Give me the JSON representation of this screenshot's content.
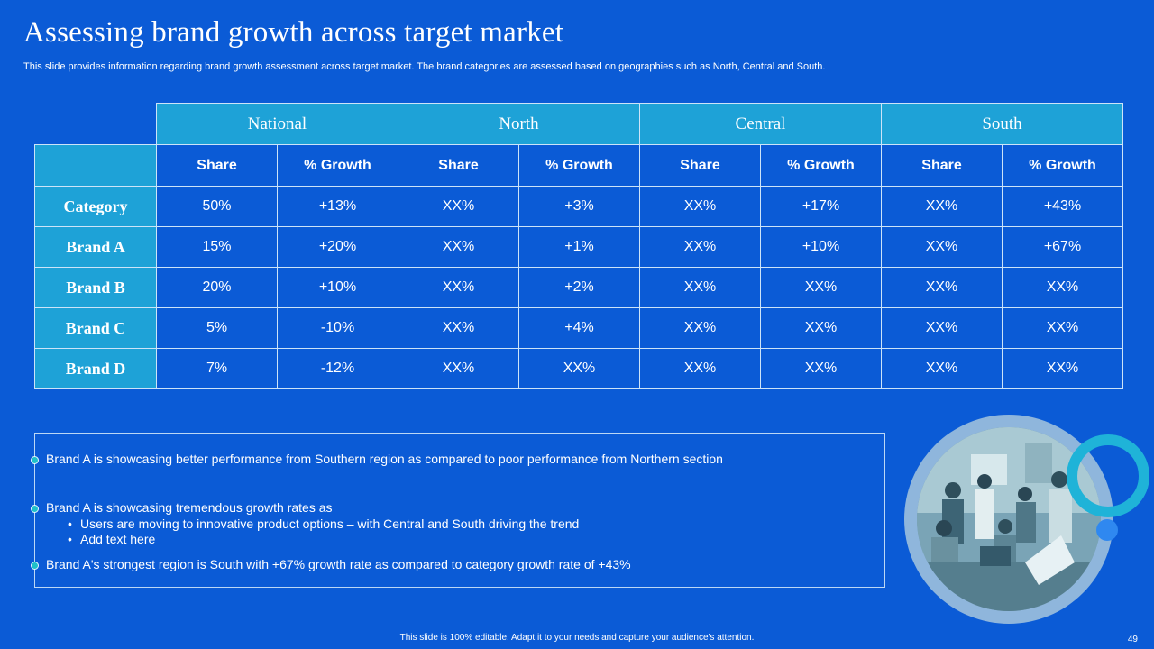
{
  "title": "Assessing brand growth across target market",
  "subtitle": "This slide provides information regarding brand growth assessment across target market. The brand categories are assessed based on geographies such as North, Central and South.",
  "table": {
    "regions": [
      "National",
      "North",
      "Central",
      "South"
    ],
    "subheaders": [
      "Share",
      "% Growth",
      "Share",
      "% Growth",
      "Share",
      "% Growth",
      "Share",
      "% Growth"
    ],
    "rows": [
      {
        "label": "Category",
        "cells": [
          "50%",
          "+13%",
          "XX%",
          "+3%",
          "XX%",
          "+17%",
          "XX%",
          "+43%"
        ]
      },
      {
        "label": "Brand A",
        "cells": [
          "15%",
          "+20%",
          "XX%",
          "+1%",
          "XX%",
          "+10%",
          "XX%",
          "+67%"
        ]
      },
      {
        "label": "Brand B",
        "cells": [
          "20%",
          "+10%",
          "XX%",
          "+2%",
          "XX%",
          "XX%",
          "XX%",
          "XX%"
        ]
      },
      {
        "label": "Brand C",
        "cells": [
          "5%",
          "-10%",
          "XX%",
          "+4%",
          "XX%",
          "XX%",
          "XX%",
          "XX%"
        ]
      },
      {
        "label": "Brand D",
        "cells": [
          "7%",
          "-12%",
          "XX%",
          "XX%",
          "XX%",
          "XX%",
          "XX%",
          "XX%"
        ]
      }
    ]
  },
  "insights": {
    "point1": "Brand A is showcasing better performance from Southern region as compared to poor performance from Northern section",
    "point2": "Brand A is showcasing tremendous growth rates as",
    "point2_sub": [
      "Users are moving to innovative product options – with Central and South driving the trend",
      "Add text here"
    ],
    "point3": "Brand A's strongest region is South with +67% growth rate as compared to category growth rate of +43%"
  },
  "footer": "This slide is 100% editable.  Adapt it to your needs and capture your audience's attention.",
  "page_number": "49",
  "colors": {
    "background": "#0b5bd6",
    "header_fill": "#1ea2d7",
    "accent_ring": "#1fb3d8",
    "accent_dot": "#2f88f0"
  }
}
